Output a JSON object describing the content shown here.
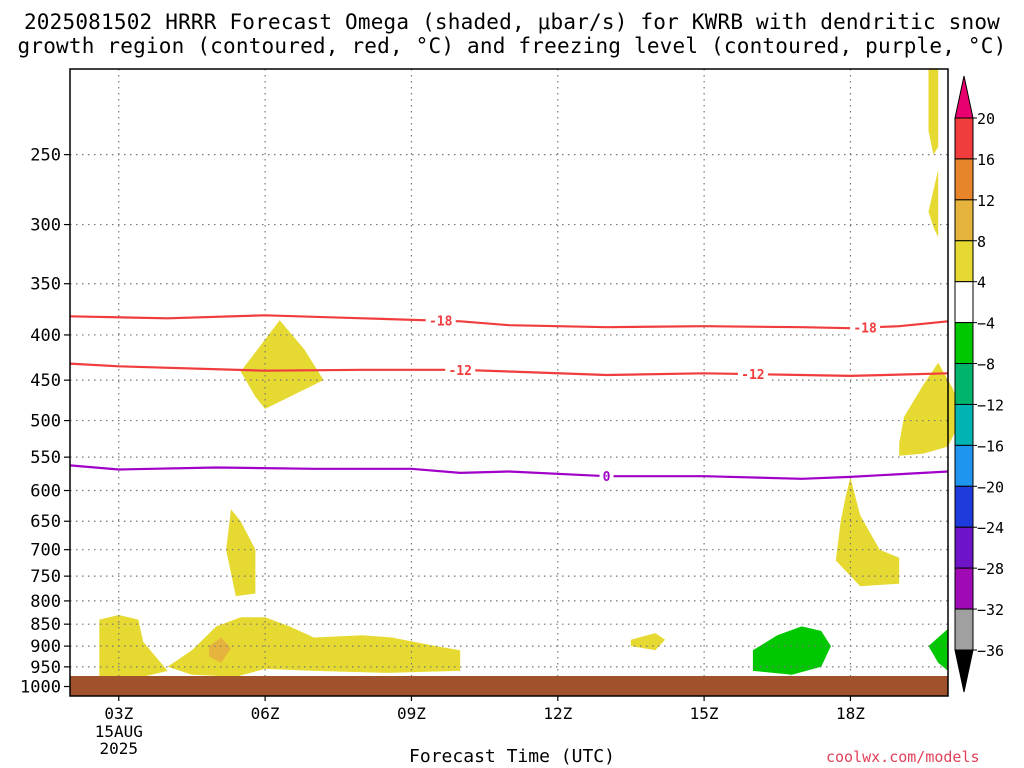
{
  "title": {
    "line1": "2025081502 HRRR Forecast Omega (shaded, μbar/s) for KWRB with dendritic snow",
    "line2": "growth region (contoured, red, °C) and freezing level (contoured, purple, °C)"
  },
  "credit": "coolwx.com/models",
  "chart_data": {
    "type": "time-height cross section",
    "xlabel": "Forecast Time (UTC)",
    "ylabel": "",
    "x_ticks": [
      "03Z",
      "06Z",
      "09Z",
      "12Z",
      "15Z",
      "18Z"
    ],
    "x_tick_hours": [
      3,
      6,
      9,
      12,
      15,
      18
    ],
    "x_date_label": [
      "15AUG",
      "2025"
    ],
    "x_range_hours": [
      2,
      20
    ],
    "y_ticks": [
      250,
      300,
      350,
      400,
      450,
      500,
      550,
      600,
      650,
      700,
      750,
      800,
      850,
      900,
      950,
      1000
    ],
    "y_range_hPa": [
      200,
      1025
    ],
    "y_scale": "log-pressure",
    "grid": "dotted",
    "colorbar": {
      "labels": [
        "20",
        "16",
        "12",
        "8",
        "4",
        "−4",
        "−8",
        "−12",
        "−16",
        "−20",
        "−24",
        "−28",
        "−32",
        "−36"
      ],
      "colors": [
        "#e8006e",
        "#f03c3c",
        "#e8852a",
        "#e6b43c",
        "#e6da32",
        "#ffffff",
        "#00c800",
        "#00b46e",
        "#00b4b4",
        "#1e96f0",
        "#1e3cdc",
        "#6e14c8",
        "#a00ab4",
        "#a0a0a0",
        "#000000"
      ]
    },
    "contours": [
      {
        "label": "-18",
        "color": "#f03c3c",
        "points": [
          [
            2,
            381
          ],
          [
            4,
            383
          ],
          [
            6,
            380
          ],
          [
            8,
            383
          ],
          [
            10,
            386
          ],
          [
            11,
            390
          ],
          [
            13,
            392
          ],
          [
            15,
            391
          ],
          [
            17,
            392
          ],
          [
            18,
            393
          ],
          [
            19,
            391
          ],
          [
            20,
            386
          ]
        ],
        "label_hours": [
          9.6,
          18.3
        ]
      },
      {
        "label": "-12",
        "color": "#f03c3c",
        "points": [
          [
            2,
            431
          ],
          [
            3,
            434
          ],
          [
            6,
            439
          ],
          [
            8,
            438
          ],
          [
            10,
            438
          ],
          [
            11,
            440
          ],
          [
            13,
            444
          ],
          [
            15,
            442
          ],
          [
            17,
            444
          ],
          [
            18,
            445
          ],
          [
            20,
            442
          ]
        ],
        "label_hours": [
          10,
          16
        ]
      },
      {
        "label": "0",
        "color": "#a000c8",
        "points": [
          [
            2,
            562
          ],
          [
            3,
            568
          ],
          [
            5,
            565
          ],
          [
            7,
            567
          ],
          [
            9,
            567
          ],
          [
            10,
            573
          ],
          [
            11,
            571
          ],
          [
            13,
            578
          ],
          [
            15,
            578
          ],
          [
            17,
            582
          ],
          [
            18,
            579
          ],
          [
            20,
            571
          ]
        ],
        "label_hours": [
          13
        ]
      }
    ],
    "omega_regions": [
      {
        "value_band": "4 to 8",
        "color": "#e6da32",
        "points": [
          [
            5.5,
            440
          ],
          [
            6.3,
            385
          ],
          [
            6.8,
            415
          ],
          [
            7.2,
            450
          ],
          [
            6,
            485
          ],
          [
            5.8,
            470
          ]
        ]
      },
      {
        "value_band": "4 to 8",
        "color": "#e6da32",
        "points": [
          [
            19.1,
            495
          ],
          [
            19.5,
            455
          ],
          [
            19.8,
            430
          ],
          [
            20.1,
            460
          ],
          [
            20.3,
            495
          ],
          [
            20,
            535
          ],
          [
            19.5,
            545
          ],
          [
            19,
            548
          ],
          [
            19,
            530
          ]
        ]
      },
      {
        "value_band": "4 to 8",
        "color": "#e6da32",
        "points": [
          [
            19.6,
            200
          ],
          [
            19.8,
            200
          ],
          [
            19.8,
            245
          ],
          [
            19.7,
            250
          ],
          [
            19.6,
            235
          ]
        ]
      },
      {
        "value_band": "4 to 8",
        "color": "#e6da32",
        "points": [
          [
            19.6,
            290
          ],
          [
            19.8,
            260
          ],
          [
            19.8,
            310
          ],
          [
            19.7,
            302
          ]
        ]
      },
      {
        "value_band": "4 to 8",
        "color": "#e6da32",
        "points": [
          [
            5.3,
            630
          ],
          [
            5.5,
            650
          ],
          [
            5.8,
            700
          ],
          [
            5.8,
            785
          ],
          [
            5.4,
            790
          ],
          [
            5.2,
            700
          ]
        ]
      },
      {
        "value_band": "4 to 8",
        "color": "#e6da32",
        "points": [
          [
            18,
            580
          ],
          [
            18.2,
            640
          ],
          [
            18.6,
            700
          ],
          [
            19,
            715
          ],
          [
            19,
            765
          ],
          [
            18.2,
            770
          ],
          [
            17.7,
            720
          ],
          [
            17.8,
            650
          ],
          [
            17.9,
            610
          ]
        ]
      },
      {
        "value_band": "4 to 8",
        "color": "#e6da32",
        "points": [
          [
            2.6,
            840
          ],
          [
            3,
            830
          ],
          [
            3.4,
            840
          ],
          [
            3.5,
            890
          ],
          [
            4,
            960
          ],
          [
            3.5,
            975
          ],
          [
            2.6,
            985
          ],
          [
            2.6,
            920
          ]
        ]
      },
      {
        "value_band": "4 to 8",
        "color": "#e6da32",
        "points": [
          [
            4,
            950
          ],
          [
            4.5,
            910
          ],
          [
            5,
            855
          ],
          [
            5.5,
            835
          ],
          [
            6,
            835
          ],
          [
            6.5,
            855
          ],
          [
            7,
            880
          ],
          [
            8,
            875
          ],
          [
            8.6,
            880
          ],
          [
            9.5,
            900
          ],
          [
            10,
            910
          ],
          [
            10,
            960
          ],
          [
            8.5,
            965
          ],
          [
            7,
            960
          ],
          [
            6,
            955
          ],
          [
            5.4,
            975
          ],
          [
            4.5,
            970
          ]
        ]
      },
      {
        "value_band": "8 to 12",
        "color": "#e6b43c",
        "points": [
          [
            4.85,
            900
          ],
          [
            5.1,
            880
          ],
          [
            5.3,
            905
          ],
          [
            5.1,
            940
          ],
          [
            4.85,
            925
          ]
        ]
      },
      {
        "value_band": "4 to 8",
        "color": "#e6da32",
        "points": [
          [
            13.5,
            885
          ],
          [
            14,
            870
          ],
          [
            14.2,
            885
          ],
          [
            14,
            910
          ],
          [
            13.5,
            900
          ]
        ]
      },
      {
        "value_band": "-8 to -4",
        "color": "#00c800",
        "points": [
          [
            16,
            910
          ],
          [
            16.5,
            875
          ],
          [
            17,
            855
          ],
          [
            17.4,
            865
          ],
          [
            17.6,
            900
          ],
          [
            17.4,
            950
          ],
          [
            16.8,
            970
          ],
          [
            16,
            960
          ]
        ]
      },
      {
        "value_band": "-8 to -4",
        "color": "#00c800",
        "points": [
          [
            19.6,
            900
          ],
          [
            20,
            860
          ],
          [
            20,
            960
          ],
          [
            19.8,
            940
          ]
        ]
      }
    ]
  }
}
